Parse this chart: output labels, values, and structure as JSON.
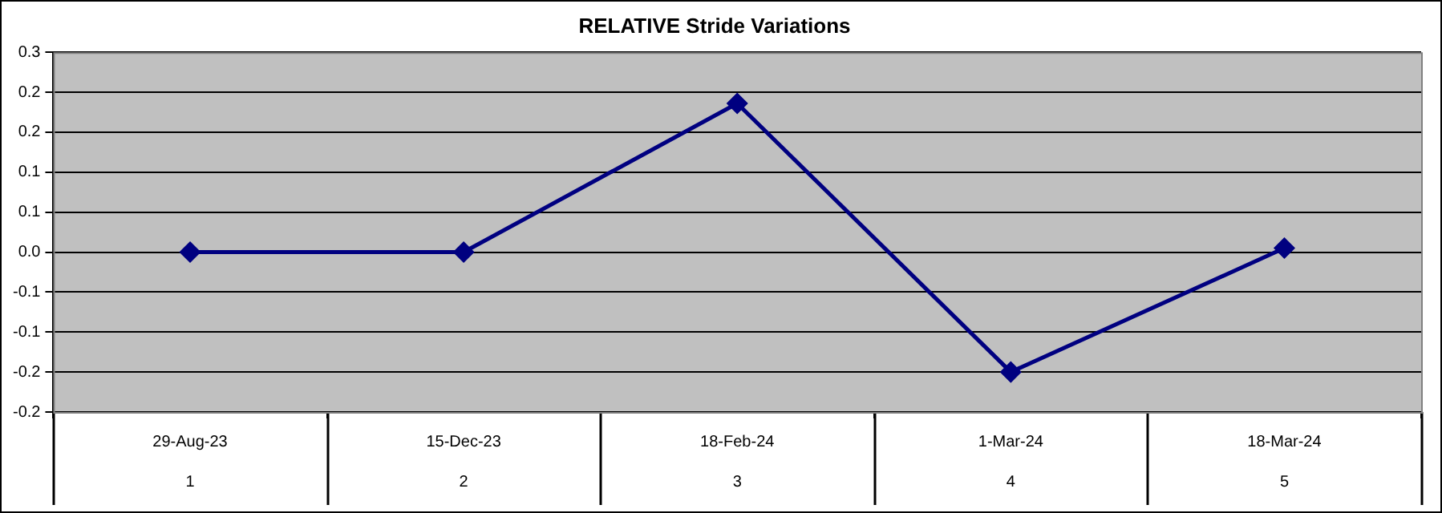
{
  "chart_data": {
    "type": "line",
    "title": "RELATIVE Stride Variations",
    "categories": [
      "29-Aug-23\n1",
      "15-Dec-23\n2",
      "18-Feb-24\n3",
      "1-Mar-24\n4",
      "18-Mar-24\n5"
    ],
    "series": [
      {
        "color": "#000080",
        "values": [
          0,
          0,
          0.186,
          -0.15,
          0.005
        ]
      }
    ],
    "ylim": [
      -0.2,
      0.25
    ],
    "yticks": [
      {
        "value": 0.25,
        "label": "0.3"
      },
      {
        "value": 0.2,
        "label": "0.2"
      },
      {
        "value": 0.15,
        "label": "0.2"
      },
      {
        "value": 0.1,
        "label": "0.1"
      },
      {
        "value": 0.05,
        "label": "0.1"
      },
      {
        "value": 0,
        "label": "0.0"
      },
      {
        "value": -0.05,
        "label": "-0.1"
      },
      {
        "value": -0.1,
        "label": "-0.1"
      },
      {
        "value": -0.15,
        "label": "-0.2"
      },
      {
        "value": -0.2,
        "label": "-0.2"
      }
    ],
    "grid": "y",
    "legend": false,
    "marker": "diamond",
    "line_style": "solid"
  }
}
